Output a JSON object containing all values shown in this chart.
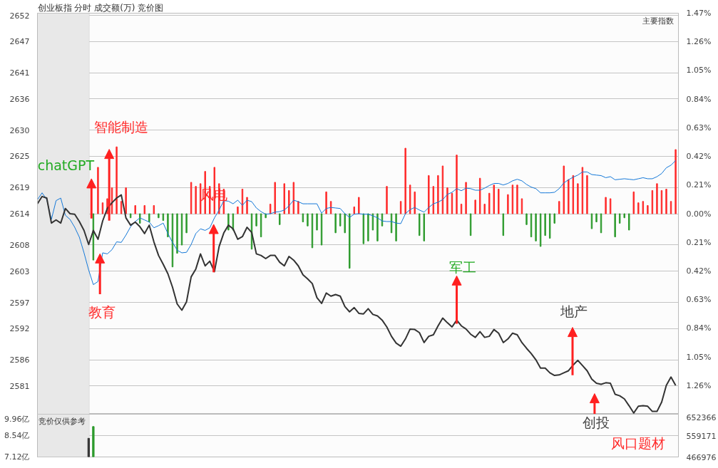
{
  "chart_data": [
    {
      "type": "line",
      "title": "创业板指  分时 成交额(万) 竞价图",
      "annotations": [
        "主要指数",
        "chatGPT",
        "智能制造",
        "教育",
        "风电",
        "军工",
        "地产"
      ],
      "categories": [
        null,
        null,
        null,
        null,
        null,
        null,
        null,
        null,
        null,
        null,
        null,
        null,
        null,
        null,
        null,
        null,
        null,
        null,
        null,
        null,
        null,
        null,
        null,
        null,
        null,
        null,
        null,
        null,
        null,
        null,
        null,
        null,
        null,
        null,
        null,
        null,
        null,
        null,
        null,
        null,
        null,
        null,
        null,
        null,
        null,
        null,
        null,
        null,
        null,
        null,
        null,
        null,
        null,
        null,
        null,
        null,
        null,
        null,
        null,
        null,
        null,
        null,
        null,
        null,
        null,
        null,
        null,
        null,
        null,
        null,
        null,
        null,
        null,
        null,
        null,
        null,
        null,
        null,
        null,
        null,
        null,
        null,
        null,
        null,
        null,
        null,
        null,
        null,
        null,
        null,
        null,
        null,
        null,
        null,
        null,
        null,
        null,
        null,
        null,
        null,
        null,
        null,
        null,
        null,
        null,
        null,
        null,
        null,
        null,
        null,
        null,
        null,
        null,
        null,
        null,
        null,
        null,
        null,
        null,
        null,
        null,
        null,
        null,
        null,
        null,
        null,
        null,
        null,
        null,
        null,
        null,
        null,
        null,
        null,
        null,
        null,
        null,
        null
      ],
      "series": [
        {
          "type": "bar",
          "axis": "y2",
          "color": "#ff2a2a",
          "values": [
            null,
            null,
            null,
            null,
            null,
            null,
            null,
            null,
            null,
            null,
            null,
            null,
            null,
            0.34,
            0.08,
            0.11,
            0.19,
            0.49,
            0.09,
            0.19,
            null,
            0.06,
            null,
            0.06,
            null,
            0.06,
            null,
            null,
            null,
            null,
            null,
            null,
            null,
            0.23,
            0.2,
            0.22,
            0.31,
            0.2,
            0.34,
            0.22,
            0.18,
            null,
            null,
            0.05,
            0.18,
            0.12,
            null,
            null,
            null,
            null,
            0.07,
            0.23,
            null,
            0.22,
            0.17,
            0.23,
            0.09,
            null,
            null,
            null,
            null,
            null,
            0.16,
            0.09,
            null,
            null,
            null,
            null,
            0.05,
            0.12,
            null,
            null,
            null,
            null,
            null,
            0.2,
            null,
            null,
            0.09,
            0.48,
            0.21,
            0.16,
            null,
            null,
            0.28,
            0.2,
            0.28,
            0.35,
            0.19,
            0.15,
            0.43,
            0.07,
            0.23,
            null,
            0.1,
            0.26,
            0.07,
            0.15,
            0.21,
            0.18,
            null,
            0.14,
            0.21,
            0.21,
            0.11,
            null,
            null,
            null,
            null,
            null,
            null,
            null,
            0.09,
            0.35,
            0.25,
            0.28,
            0.22,
            0.34,
            0.28,
            null,
            null,
            null,
            0.12,
            0.11,
            null,
            null,
            null,
            null,
            0.16,
            0.08,
            0.09,
            0.06,
            0.17,
            0.22,
            0.17,
            0.18,
            0.09,
            0.47
          ]
        },
        {
          "type": "bar",
          "axis": "y2",
          "color": "#2e9b2e",
          "values": [
            null,
            null,
            null,
            null,
            null,
            null,
            null,
            null,
            null,
            null,
            null,
            null,
            -0.34,
            null,
            null,
            null,
            null,
            null,
            null,
            null,
            -0.03,
            null,
            -0.07,
            null,
            -0.06,
            null,
            -0.03,
            -0.05,
            -0.17,
            -0.39,
            -0.29,
            -0.23,
            -0.14,
            null,
            null,
            null,
            null,
            null,
            null,
            null,
            null,
            -0.12,
            -0.12,
            null,
            null,
            null,
            -0.26,
            -0.09,
            -0.17,
            -0.03,
            null,
            null,
            -0.08,
            null,
            null,
            null,
            null,
            -0.06,
            -0.09,
            -0.25,
            -0.12,
            -0.23,
            null,
            null,
            -0.14,
            -0.09,
            -0.14,
            -0.4,
            null,
            null,
            -0.22,
            -0.2,
            -0.12,
            -0.2,
            -0.09,
            null,
            -0.14,
            -0.2,
            null,
            null,
            null,
            null,
            -0.16,
            -0.2,
            null,
            null,
            null,
            null,
            null,
            null,
            null,
            null,
            null,
            -0.16,
            null,
            null,
            null,
            null,
            null,
            null,
            -0.16,
            null,
            null,
            null,
            null,
            -0.08,
            -0.17,
            -0.2,
            -0.24,
            -0.16,
            -0.18,
            -0.07,
            null,
            null,
            null,
            null,
            null,
            null,
            null,
            -0.11,
            -0.06,
            -0.14,
            null,
            null,
            -0.17,
            -0.07,
            -0.03,
            -0.12,
            null,
            null,
            null,
            null,
            null,
            null,
            null,
            null,
            null,
            null
          ]
        },
        {
          "type": "line",
          "color": "#1478d8",
          "values": [
            2616.7,
            2618.0,
            2616.7,
            2612.9,
            2616.5,
            2617.0,
            2613.7,
            2612.9,
            2611.4,
            2609.5,
            2606.5,
            2603.2,
            2600.4,
            2601.0,
            2606.5,
            2606.3,
            2607.1,
            2608.6,
            2608.5,
            2609.9,
            2611.5,
            2612.5,
            2613.2,
            2612.8,
            2612.4,
            2611.3,
            2611.7,
            2612.2,
            2610.2,
            2608.5,
            2607.0,
            2606.5,
            2606.6,
            2608.1,
            2610.2,
            2611.1,
            2610.8,
            2611.3,
            2613.2,
            2614.7,
            2616.5,
            2616.4,
            2615.9,
            2616.6,
            2615.6,
            2616.6,
            2616.3,
            2615.1,
            2614.4,
            2613.9,
            2614.0,
            2614.3,
            2614.4,
            2614.7,
            2615.5,
            2616.6,
            2616.3,
            2615.9,
            2615.9,
            2615.9,
            2615.9,
            2614.1,
            2615.0,
            2615.2,
            2615.1,
            2615.0,
            2614.0,
            2613.3,
            2613.9,
            2614.0,
            2613.9,
            2613.9,
            2613.6,
            2613.2,
            2612.6,
            2612.5,
            2612.5,
            2612.2,
            2612.1,
            2614.0,
            2614.8,
            2615.2,
            2614.7,
            2614.3,
            2615.2,
            2615.9,
            2616.2,
            2616.7,
            2617.7,
            2618.1,
            2618.8,
            2618.4,
            2618.9,
            2618.8,
            2618.5,
            2618.5,
            2618.9,
            2619.4,
            2619.8,
            2619.8,
            2619.5,
            2619.8,
            2620.3,
            2620.6,
            2620.3,
            2619.6,
            2619.1,
            2618.8,
            2618.0,
            2618.0,
            2618.0,
            2618.1,
            2618.8,
            2619.9,
            2620.5,
            2621.0,
            2621.4,
            2622.0,
            2622.0,
            2621.5,
            2621.4,
            2621.3,
            2620.9,
            2621.1,
            2620.5,
            2620.6,
            2620.7,
            2620.6,
            2620.5,
            2620.7,
            2620.9,
            2620.7,
            2620.7,
            2621.1,
            2621.7,
            2622.8,
            2623.3,
            2624.2
          ]
        },
        {
          "type": "line",
          "color": "#333333",
          "values": [
            2615.9,
            2617.3,
            2617.0,
            2612.2,
            2612.8,
            2612.2,
            2615.0,
            2614.0,
            2613.9,
            2612.5,
            2610.8,
            2608.1,
            2610.8,
            2609.1,
            2612.6,
            2615.0,
            2616.1,
            2617.0,
            2617.6,
            2613.2,
            2611.8,
            2612.4,
            2611.5,
            2610.2,
            2611.8,
            2608.6,
            2606.0,
            2604.3,
            2602.5,
            2599.9,
            2596.7,
            2595.5,
            2597.1,
            2601.9,
            2603.4,
            2606.3,
            2604.0,
            2604.9,
            2602.9,
            2607.7,
            2610.3,
            2611.8,
            2611.1,
            2609.1,
            2609.6,
            2611.4,
            2610.4,
            2606.3,
            2606.0,
            2605.4,
            2606.0,
            2606.0,
            2604.7,
            2604.0,
            2605.8,
            2605.1,
            2604.0,
            2602.3,
            2601.5,
            2600.6,
            2597.9,
            2596.8,
            2598.8,
            2598.2,
            2598.5,
            2598.2,
            2596.2,
            2595.2,
            2596.0,
            2594.9,
            2594.8,
            2595.8,
            2594.7,
            2594.4,
            2593.6,
            2592.3,
            2590.5,
            2589.2,
            2588.6,
            2590.0,
            2591.9,
            2591.8,
            2591.2,
            2589.3,
            2590.5,
            2590.8,
            2592.5,
            2594.0,
            2593.1,
            2592.3,
            2593.6,
            2592.5,
            2591.9,
            2590.9,
            2590.3,
            2591.4,
            2590.3,
            2590.5,
            2591.8,
            2591.1,
            2589.3,
            2590.0,
            2591.1,
            2590.8,
            2589.3,
            2588.2,
            2587.2,
            2586.0,
            2584.4,
            2584.4,
            2583.5,
            2583.0,
            2583.1,
            2583.5,
            2583.9,
            2585.0,
            2585.9,
            2584.9,
            2583.9,
            2582.3,
            2581.5,
            2581.3,
            2581.6,
            2581.5,
            2579.4,
            2579.1,
            2578.5,
            2577.2,
            2575.8,
            2577.1,
            2577.2,
            2577.1,
            2576.1,
            2576.1,
            2577.9,
            2581.1,
            2582.7,
            2581.1
          ]
        }
      ],
      "ylim": [
        2575.57,
        2652.43
      ],
      "yticks": [
        2581,
        2586,
        2592,
        2597,
        2603,
        2608,
        2614,
        2619,
        2625,
        2630,
        2636,
        2641,
        2647,
        2652
      ],
      "y2lim": [
        -1.47,
        1.47
      ],
      "y2ticks": [
        {
          "value": -1.26,
          "label": "1.26%"
        },
        {
          "value": -1.05,
          "label": "1.05%"
        },
        {
          "value": -0.84,
          "label": "0.84%"
        },
        {
          "value": -0.63,
          "label": "0.63%"
        },
        {
          "value": -0.42,
          "label": "0.42%"
        },
        {
          "value": -0.21,
          "label": "0.21%"
        },
        {
          "value": 0,
          "label": "0.00%"
        },
        {
          "value": 0.21,
          "label": "0.21%"
        },
        {
          "value": 0.42,
          "label": "0.42%"
        },
        {
          "value": 0.63,
          "label": "0.63%"
        },
        {
          "value": 0.84,
          "label": "0.84%"
        },
        {
          "value": 1.05,
          "label": "1.05%"
        },
        {
          "value": 1.26,
          "label": "1.26%"
        },
        {
          "value": 1.47,
          "label": "1.47%"
        }
      ],
      "grid": "y"
    },
    {
      "type": "bar",
      "annotations": [
        "竞价仅供参考",
        "创投",
        "风口题材"
      ],
      "categories": [
        null,
        null,
        null,
        null,
        null,
        null,
        null,
        null,
        null,
        null,
        null,
        null,
        null,
        null,
        null,
        null,
        null,
        null,
        null,
        null,
        null,
        null,
        null,
        null,
        null,
        null,
        null,
        null,
        null,
        null,
        null,
        null,
        null,
        null,
        null,
        null,
        null,
        null,
        null,
        null,
        null,
        null,
        null,
        null,
        null,
        null,
        null,
        null,
        null,
        null,
        null,
        null,
        null,
        null,
        null,
        null,
        null,
        null,
        null,
        null,
        null,
        null,
        null,
        null,
        null,
        null,
        null,
        null,
        null,
        null,
        null,
        null,
        null,
        null,
        null,
        null,
        null,
        null,
        null,
        null,
        null,
        null,
        null,
        null,
        null,
        null,
        null,
        null,
        null,
        null,
        null,
        null,
        null,
        null,
        null,
        null,
        null,
        null,
        null,
        null,
        null,
        null,
        null,
        null,
        null,
        null,
        null,
        null,
        null,
        null,
        null,
        null,
        null,
        null,
        null,
        null,
        null,
        null,
        null,
        null,
        null,
        null,
        null,
        null,
        null,
        null,
        null,
        null,
        null,
        null,
        null,
        null,
        null,
        null,
        null,
        null,
        null,
        null
      ],
      "series": [
        {
          "color": "#333333",
          "values": [
            null,
            null,
            null,
            null,
            null,
            null,
            null,
            null,
            null,
            null,
            null,
            8.36,
            null,
            null,
            null,
            null,
            null,
            null,
            null,
            null,
            null,
            null,
            null,
            null,
            null,
            null,
            null,
            null,
            null,
            null,
            null,
            null,
            null,
            null,
            null,
            null,
            null,
            null,
            null,
            null,
            null,
            null,
            null,
            null,
            null,
            null,
            null,
            null,
            null,
            null,
            null,
            null,
            null,
            null,
            null,
            null,
            null,
            null,
            null,
            null,
            null,
            null,
            null,
            null,
            null,
            null,
            null,
            null,
            null,
            null,
            null,
            null,
            null,
            null,
            null,
            null,
            null,
            null,
            null,
            null,
            null,
            null,
            null,
            null,
            null,
            null,
            null,
            null,
            null,
            null,
            null,
            null,
            null,
            null,
            null,
            null,
            null,
            null,
            null,
            null,
            null,
            null,
            null,
            null,
            null,
            null,
            null,
            null,
            null,
            null,
            null,
            null,
            null,
            null,
            null,
            null,
            null,
            null,
            null,
            null,
            null,
            null,
            null,
            null,
            null,
            null,
            null,
            null,
            null,
            null,
            null,
            null,
            null,
            null,
            null,
            null,
            null,
            null
          ]
        },
        {
          "color": "#2e9b2e",
          "values": [
            null,
            null,
            null,
            null,
            null,
            null,
            null,
            null,
            null,
            null,
            null,
            null,
            9.14,
            null,
            null,
            null,
            null,
            null,
            null,
            null,
            null,
            null,
            null,
            null,
            null,
            null,
            null,
            null,
            null,
            null,
            null,
            null,
            null,
            null,
            null,
            null,
            null,
            null,
            null,
            null,
            null,
            null,
            null,
            null,
            null,
            null,
            null,
            null,
            null,
            null,
            null,
            null,
            null,
            null,
            null,
            null,
            null,
            null,
            null,
            null,
            null,
            null,
            null,
            null,
            null,
            null,
            null,
            null,
            null,
            null,
            null,
            null,
            null,
            null,
            null,
            null,
            null,
            null,
            null,
            null,
            null,
            null,
            null,
            null,
            null,
            null,
            null,
            null,
            null,
            null,
            null,
            null,
            null,
            null,
            null,
            null,
            null,
            null,
            null,
            null,
            null,
            null,
            null,
            null,
            null,
            null,
            null,
            null,
            null,
            null,
            null,
            null,
            null,
            null,
            null,
            null,
            null,
            null,
            null,
            null,
            null,
            null,
            null,
            null,
            null,
            null,
            null,
            null,
            null,
            null,
            null,
            null,
            null,
            null,
            null,
            null,
            null,
            null
          ]
        }
      ],
      "ylim": [
        7.12,
        9.96
      ],
      "yticks": [
        {
          "value": 7.12,
          "label": "7.12亿"
        },
        {
          "value": 8.54,
          "label": "8.54亿"
        },
        {
          "value": 9.96,
          "label": "9.96亿"
        }
      ],
      "y2lim": [
        466976,
        652366
      ],
      "y2ticks": [
        466976,
        559171,
        652366
      ],
      "grid": "y"
    }
  ]
}
